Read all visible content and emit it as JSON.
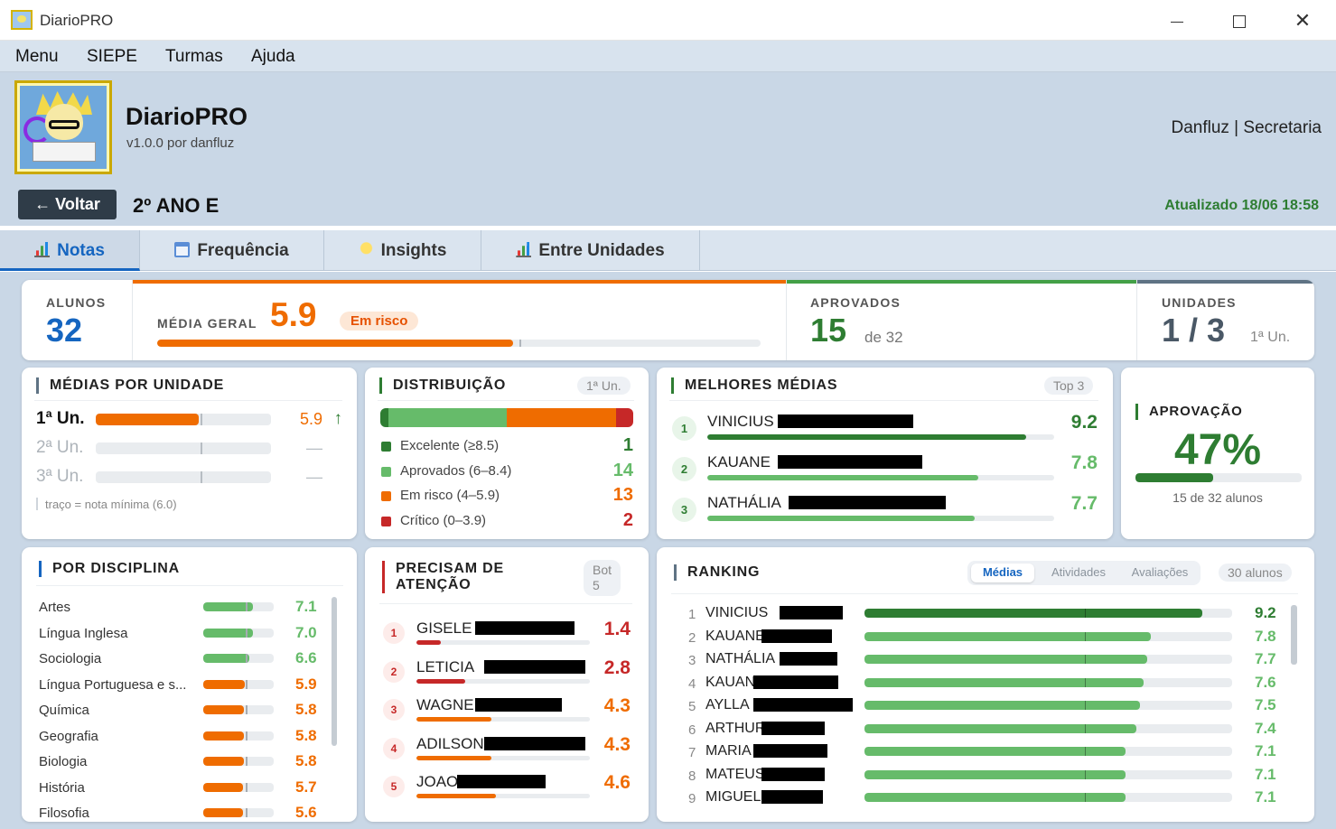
{
  "window": {
    "title": "DiarioPRO"
  },
  "menu": [
    "Menu",
    "SIEPE",
    "Turmas",
    "Ajuda"
  ],
  "header": {
    "app_name": "DiarioPRO",
    "version": "v1.0.0 por danfluz",
    "user": "Danfluz | Secretaria"
  },
  "nav": {
    "back_label": "← Voltar",
    "class_name": "2º ANO E",
    "updated": "Atualizado 18/06 18:58"
  },
  "tabs": [
    {
      "label": "Notas",
      "icon": "bar-chart-icon"
    },
    {
      "label": "Frequência",
      "icon": "calendar-icon"
    },
    {
      "label": "Insights",
      "icon": "lightbulb-icon"
    },
    {
      "label": "Entre Unidades",
      "icon": "bar-chart-icon"
    }
  ],
  "summary": {
    "alunos_label": "ALUNOS",
    "alunos_value": "32",
    "media_label": "MÉDIA GERAL",
    "media_value": "5.9",
    "media_badge": "Em risco",
    "media_fraction": 0.59,
    "aprovados_label": "APROVADOS",
    "aprovados_value": "15",
    "aprovados_of": "de 32",
    "unidades_label": "UNIDADES",
    "unidades_value": "1 / 3",
    "unidades_current": "1ª Un."
  },
  "medias_unidade": {
    "title": "MÉDIAS POR UNIDADE",
    "rows": [
      {
        "label": "1ª Un.",
        "value": "5.9",
        "arrow": "↑",
        "fraction": 0.59,
        "active": true
      },
      {
        "label": "2ª Un.",
        "value": "—",
        "arrow": "",
        "fraction": 0,
        "active": false
      },
      {
        "label": "3ª Un.",
        "value": "—",
        "arrow": "",
        "fraction": 0,
        "active": false
      }
    ],
    "footnote": "traço = nota mínima (6.0)"
  },
  "distribuicao": {
    "title": "DISTRIBUIÇÃO",
    "tag": "1ª Un.",
    "items": [
      {
        "label": "Excelente (≥8.5)",
        "value": "1",
        "count": 1,
        "color": "#2e7d32"
      },
      {
        "label": "Aprovados (6–8.4)",
        "value": "14",
        "count": 14,
        "color": "#66bb6a"
      },
      {
        "label": "Em risco (4–5.9)",
        "value": "13",
        "count": 13,
        "color": "#ef6c00"
      },
      {
        "label": "Crítico (0–3.9)",
        "value": "2",
        "count": 2,
        "color": "#c62828"
      }
    ]
  },
  "melhores": {
    "title": "MELHORES MÉDIAS",
    "tag": "Top 3",
    "items": [
      {
        "rank": "1",
        "name": "VINICIUS",
        "value": "9.2",
        "fraction": 0.92,
        "color": "#2e7d32"
      },
      {
        "rank": "2",
        "name": "KAUANE",
        "value": "7.8",
        "fraction": 0.78,
        "color": "#66bb6a"
      },
      {
        "rank": "3",
        "name": "NATHÁLIA",
        "value": "7.7",
        "fraction": 0.77,
        "color": "#66bb6a"
      }
    ]
  },
  "aprovacao": {
    "title": "APROVAÇÃO",
    "percent": "47%",
    "fraction": 0.47,
    "caption": "15 de 32 alunos"
  },
  "disciplinas": {
    "title": "POR DISCIPLINA",
    "items": [
      {
        "name": "Artes",
        "value": "7.1",
        "fraction": 0.71,
        "color": "#66bb6a"
      },
      {
        "name": "Língua Inglesa",
        "value": "7.0",
        "fraction": 0.7,
        "color": "#66bb6a"
      },
      {
        "name": "Sociologia",
        "value": "6.6",
        "fraction": 0.66,
        "color": "#66bb6a"
      },
      {
        "name": "Língua Portuguesa e s...",
        "value": "5.9",
        "fraction": 0.59,
        "color": "#ef6c00"
      },
      {
        "name": "Química",
        "value": "5.8",
        "fraction": 0.58,
        "color": "#ef6c00"
      },
      {
        "name": "Geografia",
        "value": "5.8",
        "fraction": 0.58,
        "color": "#ef6c00"
      },
      {
        "name": "Biologia",
        "value": "5.8",
        "fraction": 0.58,
        "color": "#ef6c00"
      },
      {
        "name": "História",
        "value": "5.7",
        "fraction": 0.57,
        "color": "#ef6c00"
      },
      {
        "name": "Filosofia",
        "value": "5.6",
        "fraction": 0.56,
        "color": "#ef6c00"
      }
    ]
  },
  "atencao": {
    "title_line1": "PRECISAM DE",
    "title_line2": "ATENÇÃO",
    "tag_line1": "Bot",
    "tag_line2": "5",
    "items": [
      {
        "rank": "1",
        "name": "GISELE",
        "value": "1.4",
        "fraction": 0.14,
        "color": "#c62828"
      },
      {
        "rank": "2",
        "name": "LETICIA",
        "value": "2.8",
        "fraction": 0.28,
        "color": "#c62828"
      },
      {
        "rank": "3",
        "name": "WAGNER",
        "value": "4.3",
        "fraction": 0.43,
        "color": "#ef6c00"
      },
      {
        "rank": "4",
        "name": "ADILSON",
        "value": "4.3",
        "fraction": 0.43,
        "color": "#ef6c00"
      },
      {
        "rank": "5",
        "name": "JOAO",
        "value": "4.6",
        "fraction": 0.46,
        "color": "#ef6c00"
      }
    ]
  },
  "ranking": {
    "title": "RANKING",
    "segments": [
      "Médias",
      "Atividades",
      "Avaliações"
    ],
    "active_segment": "Médias",
    "count": "30 alunos",
    "items": [
      {
        "rank": "1",
        "name": "VINICIUS",
        "value": "9.2",
        "fraction": 0.92,
        "color": "#2e7d32"
      },
      {
        "rank": "2",
        "name": "KAUANE",
        "value": "7.8",
        "fraction": 0.78,
        "color": "#66bb6a"
      },
      {
        "rank": "3",
        "name": "NATHÁLIA",
        "value": "7.7",
        "fraction": 0.77,
        "color": "#66bb6a"
      },
      {
        "rank": "4",
        "name": "KAUAN",
        "value": "7.6",
        "fraction": 0.76,
        "color": "#66bb6a"
      },
      {
        "rank": "5",
        "name": "AYLLA",
        "value": "7.5",
        "fraction": 0.75,
        "color": "#66bb6a"
      },
      {
        "rank": "6",
        "name": "ARTHUR",
        "value": "7.4",
        "fraction": 0.74,
        "color": "#66bb6a"
      },
      {
        "rank": "7",
        "name": "MARIA",
        "value": "7.1",
        "fraction": 0.71,
        "color": "#66bb6a"
      },
      {
        "rank": "8",
        "name": "MATEUS",
        "value": "7.1",
        "fraction": 0.71,
        "color": "#66bb6a"
      },
      {
        "rank": "9",
        "name": "MIGUEL",
        "value": "7.1",
        "fraction": 0.71,
        "color": "#66bb6a"
      }
    ]
  }
}
